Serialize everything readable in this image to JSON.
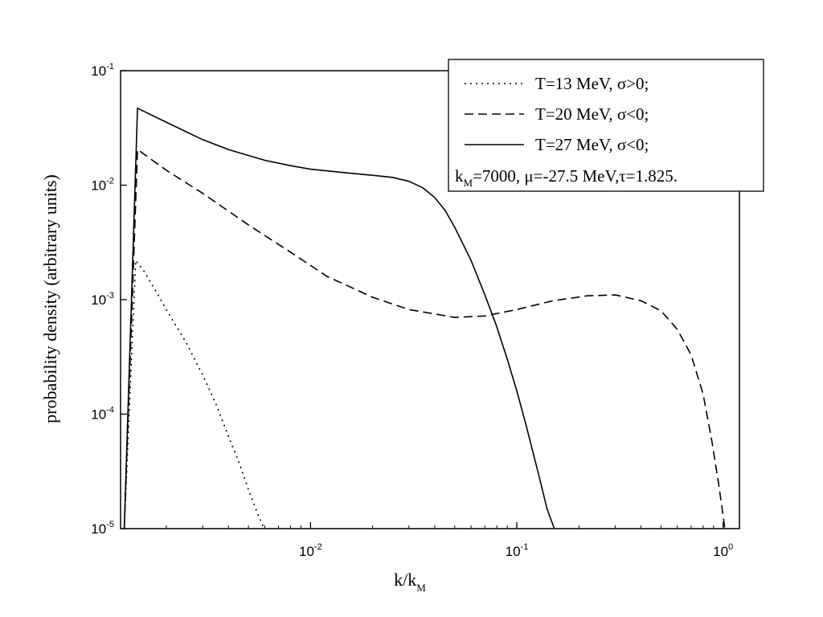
{
  "chart_data": {
    "type": "line",
    "title": "",
    "xlabel": {
      "main": "k/k",
      "sub": "M"
    },
    "ylabel": "probability density (arbitrary units)",
    "x_scale": "log",
    "y_scale": "log",
    "xlim": [
      0.0012,
      1.2
    ],
    "ylim": [
      1e-05,
      0.1
    ],
    "x_ticks": [
      {
        "value": 0.01,
        "base": "10",
        "exp": "-2"
      },
      {
        "value": 0.1,
        "base": "10",
        "exp": "-1"
      },
      {
        "value": 1,
        "base": "10",
        "exp": "0"
      }
    ],
    "y_ticks": [
      {
        "value": 0.1,
        "base": "10",
        "exp": "-1"
      },
      {
        "value": 0.01,
        "base": "10",
        "exp": "-2"
      },
      {
        "value": 0.001,
        "base": "10",
        "exp": "-3"
      },
      {
        "value": 0.0001,
        "base": "10",
        "exp": "-4"
      },
      {
        "value": 1e-05,
        "base": "10",
        "exp": "-5"
      }
    ],
    "grid": false,
    "legend_position": "top-right",
    "series": [
      {
        "name": "T=13 MeV, σ>0;",
        "dash": "dotted",
        "points": [
          [
            0.00125,
            1e-05
          ],
          [
            0.00142,
            0.0022
          ],
          [
            0.00155,
            0.0018
          ],
          [
            0.0018,
            0.00115
          ],
          [
            0.002,
            0.00082
          ],
          [
            0.0025,
            0.00042
          ],
          [
            0.003,
            0.00022
          ],
          [
            0.0035,
            0.00012
          ],
          [
            0.004,
            6.4e-05
          ],
          [
            0.0045,
            3.8e-05
          ],
          [
            0.005,
            2.2e-05
          ],
          [
            0.0055,
            1.4e-05
          ],
          [
            0.00595,
            1e-05
          ]
        ]
      },
      {
        "name": "T=20 MeV, σ<0;",
        "dash": "dashed",
        "points": [
          [
            0.00125,
            1e-05
          ],
          [
            0.00145,
            0.0205
          ],
          [
            0.002,
            0.0135
          ],
          [
            0.003,
            0.0085
          ],
          [
            0.005,
            0.0045
          ],
          [
            0.008,
            0.0026
          ],
          [
            0.012,
            0.0016
          ],
          [
            0.02,
            0.00105
          ],
          [
            0.03,
            0.00082
          ],
          [
            0.05,
            0.0007
          ],
          [
            0.07,
            0.00072
          ],
          [
            0.1,
            0.00082
          ],
          [
            0.15,
            0.00098
          ],
          [
            0.22,
            0.00108
          ],
          [
            0.3,
            0.0011
          ],
          [
            0.4,
            0.00098
          ],
          [
            0.5,
            0.0008
          ],
          [
            0.6,
            0.00055
          ],
          [
            0.7,
            0.00033
          ],
          [
            0.8,
            0.00015
          ],
          [
            0.88,
            6e-05
          ],
          [
            0.95,
            2.5e-05
          ],
          [
            1.0,
            1.3e-05
          ],
          [
            1.02,
            1e-05
          ]
        ]
      },
      {
        "name": "T=27 MeV, σ<0;",
        "dash": "solid",
        "points": [
          [
            0.00125,
            1e-05
          ],
          [
            0.00145,
            0.047
          ],
          [
            0.002,
            0.0355
          ],
          [
            0.003,
            0.025
          ],
          [
            0.004,
            0.0205
          ],
          [
            0.006,
            0.0165
          ],
          [
            0.008,
            0.0148
          ],
          [
            0.01,
            0.0138
          ],
          [
            0.015,
            0.0128
          ],
          [
            0.02,
            0.0122
          ],
          [
            0.025,
            0.0117
          ],
          [
            0.03,
            0.0108
          ],
          [
            0.035,
            0.0095
          ],
          [
            0.04,
            0.0078
          ],
          [
            0.045,
            0.006
          ],
          [
            0.05,
            0.0043
          ],
          [
            0.06,
            0.0022
          ],
          [
            0.07,
            0.0011
          ],
          [
            0.08,
            0.00058
          ],
          [
            0.09,
            0.0003
          ],
          [
            0.1,
            0.00016
          ],
          [
            0.11,
            8.5e-05
          ],
          [
            0.12,
            4.6e-05
          ],
          [
            0.13,
            2.6e-05
          ],
          [
            0.14,
            1.5e-05
          ],
          [
            0.152,
            1e-05
          ]
        ]
      }
    ],
    "annotation": {
      "k_label": "k",
      "k_sub": "M",
      "text": "=7000, μ=-27.5 MeV,τ=1.825."
    }
  }
}
